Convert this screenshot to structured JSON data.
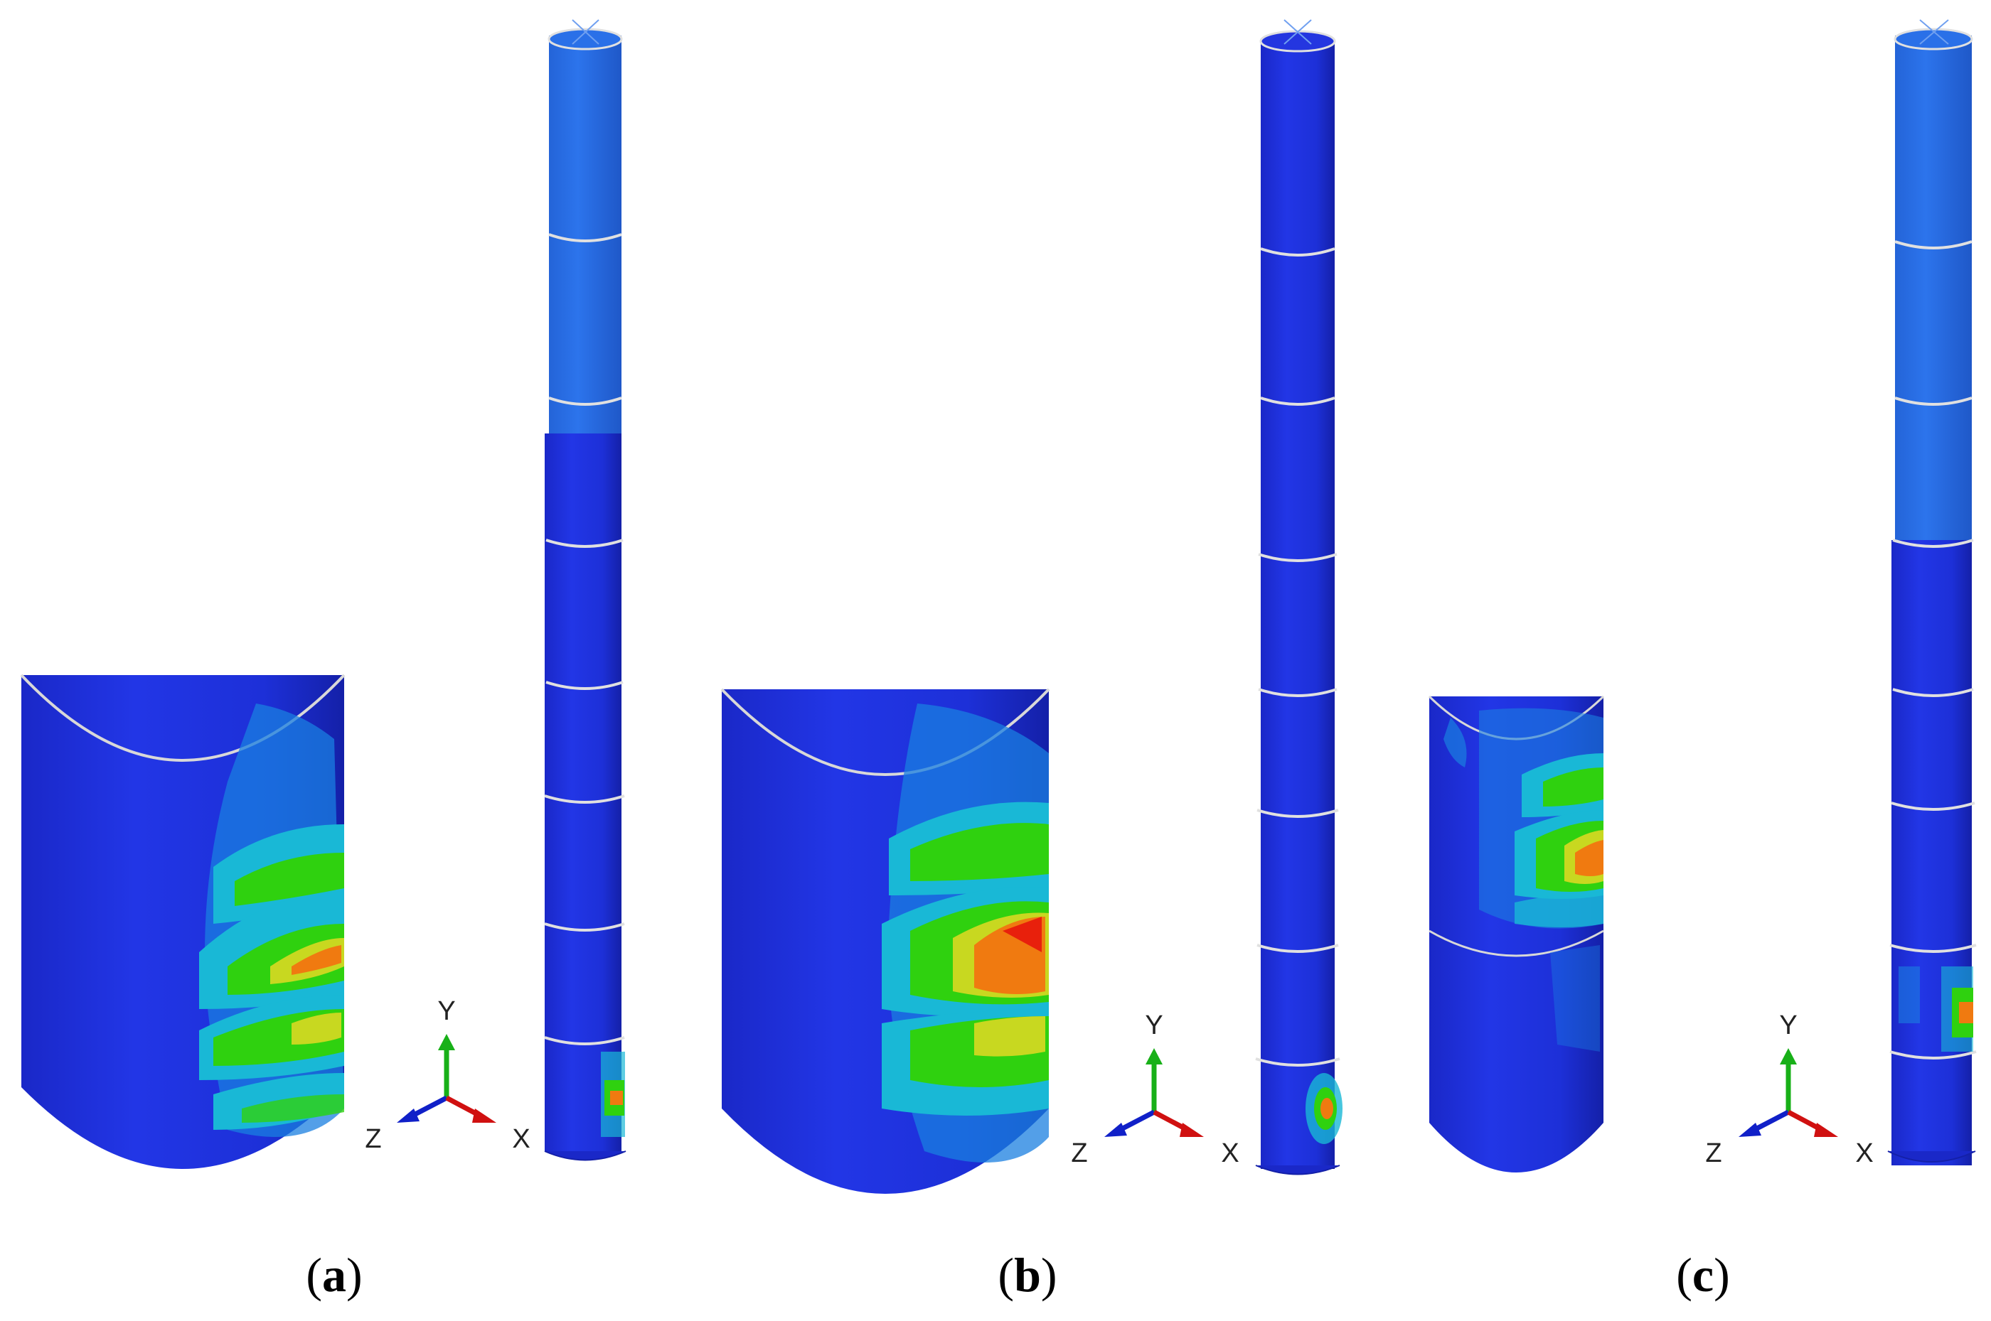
{
  "figure": {
    "panels": [
      {
        "id": "a",
        "label": "a"
      },
      {
        "id": "b",
        "label": "b"
      },
      {
        "id": "c",
        "label": "c"
      }
    ],
    "triad": {
      "y": "Y",
      "z": "Z",
      "x": "X"
    }
  },
  "colors": {
    "background": "#ffffff",
    "base_blue": "#1d2fe0",
    "light_blue": "#2a6ee6",
    "contour_cyan": "#19b8d6",
    "contour_green": "#2fd10f",
    "contour_yellow": "#c8d820",
    "contour_orange": "#f07a10",
    "contour_red": "#e8200c",
    "axis_y": "#18b018",
    "axis_z": "#1020c8",
    "axis_x": "#d01010",
    "seam_line": "#e0e0e0"
  }
}
